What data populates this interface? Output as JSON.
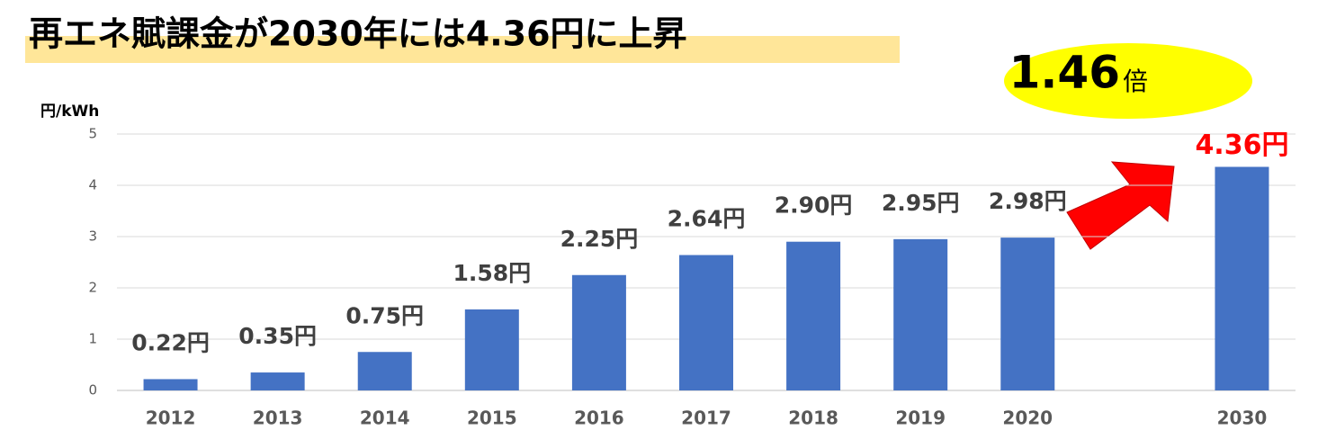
{
  "chart_data": {
    "type": "bar",
    "title": "再エネ賦課金が2030年には4.36円に上昇",
    "y_axis_label": "円/kWh",
    "annotation": {
      "text": "1.46",
      "suffix": "倍"
    },
    "categories": [
      "2012",
      "2013",
      "2014",
      "2015",
      "2016",
      "2017",
      "2018",
      "2019",
      "2020",
      null,
      "2030"
    ],
    "values": [
      0.22,
      0.35,
      0.75,
      1.58,
      2.25,
      2.64,
      2.9,
      2.95,
      2.98,
      null,
      4.36
    ],
    "value_labels": [
      "0.22円",
      "0.35円",
      "0.75円",
      "1.58円",
      "2.25円",
      "2.64円",
      "2.90円",
      "2.95円",
      "2.98円",
      null,
      "4.36円"
    ],
    "value_label_colors": [
      "#404040",
      "#404040",
      "#404040",
      "#404040",
      "#404040",
      "#404040",
      "#404040",
      "#404040",
      "#404040",
      null,
      "#ff0000"
    ],
    "color": "#4472c4",
    "ylim": [
      0,
      5
    ],
    "yticks": [
      0,
      1,
      2,
      3,
      4,
      5
    ],
    "grid": true
  }
}
